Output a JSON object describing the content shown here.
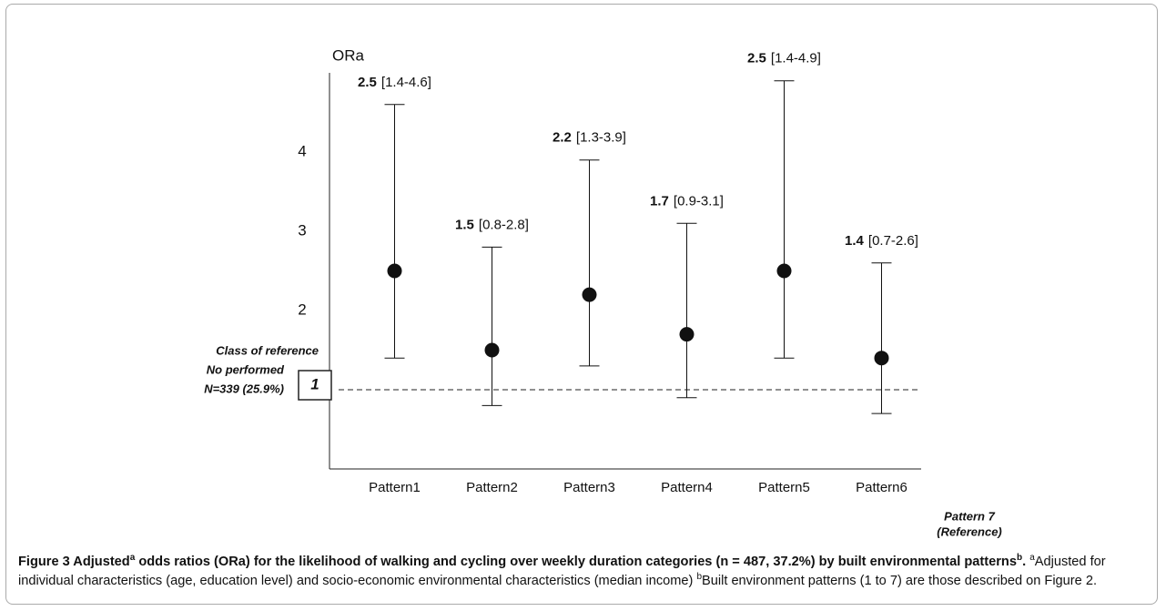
{
  "chart_data": {
    "type": "errorbar",
    "y_label": "ORa",
    "categories": [
      "Pattern1",
      "Pattern2",
      "Pattern3",
      "Pattern4",
      "Pattern5",
      "Pattern6"
    ],
    "values": [
      2.5,
      1.5,
      2.2,
      1.7,
      2.5,
      1.4
    ],
    "lower": [
      1.4,
      0.8,
      1.3,
      0.9,
      1.4,
      0.7
    ],
    "upper": [
      4.6,
      2.8,
      3.9,
      3.1,
      4.9,
      2.6
    ],
    "ci_labels": [
      "[1.4-4.6]",
      "[0.8-2.8]",
      "[1.3-3.9]",
      "[0.9-3.1]",
      "[1.4-4.9]",
      "[0.7-2.6]"
    ],
    "color": "#111111",
    "ylim": [
      0,
      5
    ],
    "yticks": [
      2,
      3,
      4
    ],
    "reference_line": {
      "value": 1,
      "labels": [
        "Class of reference",
        "No performed",
        "N=339 (25.9%)"
      ]
    },
    "reference_category": [
      "Pattern 7",
      "(Reference)"
    ]
  },
  "caption": [
    "Figure 3 Adjusted",
    "a",
    " odds ratios (ORa) for the likelihood of walking and cycling over weekly duration categories (n = 487, 37.2%)  by built environmental patterns",
    "b",
    ". ",
    "a",
    "Adjusted for individual characteristics (age, education level) and socio-economic environmental characteristics (median income) ",
    "b",
    "Built environment patterns (1 to 7) are those described on Figure 2."
  ]
}
